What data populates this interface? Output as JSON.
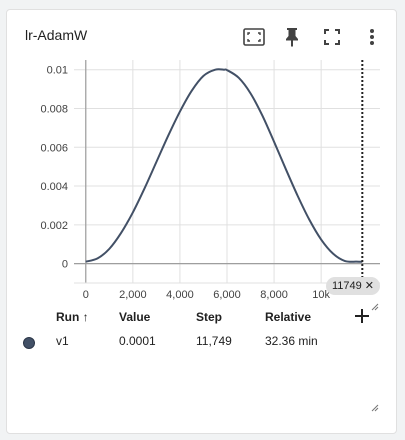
{
  "card": {
    "title": "lr-AdamW"
  },
  "toolbar": {
    "icons": [
      "fit-domain-icon",
      "pin-icon",
      "fullscreen-icon",
      "more-vert-icon"
    ]
  },
  "colors": {
    "series": "#425066",
    "grid": "#e0e0e0",
    "axis": "#9e9e9e",
    "step_marker": "#212121"
  },
  "chart_data": {
    "type": "line",
    "title": "",
    "xlabel": "",
    "ylabel": "",
    "xlim": [
      -500,
      12500
    ],
    "ylim": [
      -0.001,
      0.0105
    ],
    "x_ticks": [
      0,
      2000,
      4000,
      6000,
      8000,
      10000
    ],
    "x_tick_labels": [
      "0",
      "2,000",
      "4,000",
      "6,000",
      "8,000",
      "10k"
    ],
    "y_ticks": [
      0,
      0.002,
      0.004,
      0.006,
      0.008,
      0.01
    ],
    "y_tick_labels": [
      "0",
      "0.002",
      "0.004",
      "0.006",
      "0.008",
      "0.01"
    ],
    "grid": true,
    "series": [
      {
        "name": "v1",
        "x": [
          0,
          500,
          1000,
          1500,
          2000,
          2500,
          3000,
          3500,
          4000,
          4500,
          5000,
          5500,
          5875,
          6000,
          6500,
          7000,
          7500,
          8000,
          8500,
          9000,
          9500,
          10000,
          10500,
          11000,
          11500,
          11749
        ],
        "y": [
          0.0001,
          0.00027,
          0.00076,
          0.00158,
          0.00264,
          0.00389,
          0.00524,
          0.00659,
          0.00784,
          0.00891,
          0.00968,
          0.01,
          0.01,
          0.00998,
          0.00958,
          0.00878,
          0.00764,
          0.00628,
          0.00487,
          0.0035,
          0.00226,
          0.00124,
          0.00052,
          0.00014,
          0.0001,
          0.0001
        ]
      }
    ],
    "step_marker": {
      "step": 11749,
      "label": "11749"
    }
  },
  "table": {
    "headers": {
      "run": "Run ↑",
      "value": "Value",
      "step": "Step",
      "relative": "Relative"
    },
    "rows": [
      {
        "run": "v1",
        "value": "0.0001",
        "step": "11,749",
        "relative": "32.36 min"
      }
    ]
  }
}
